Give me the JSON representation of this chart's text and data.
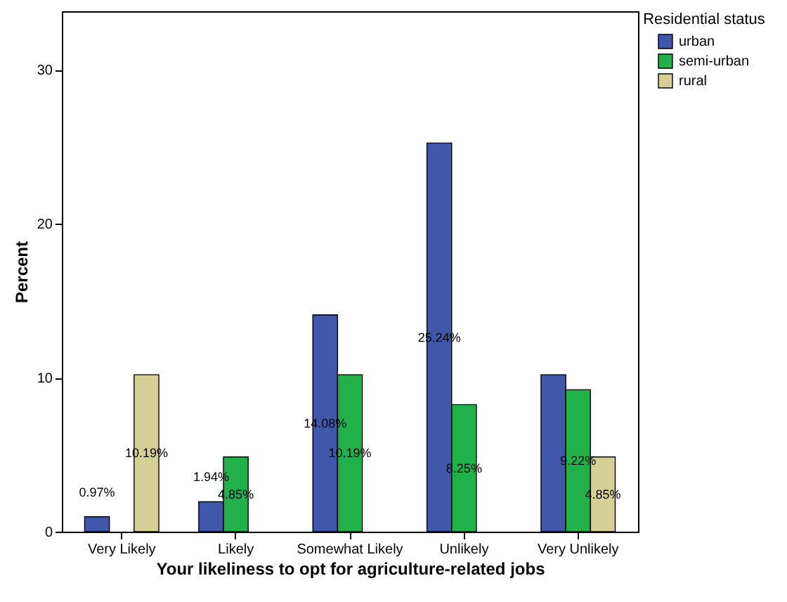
{
  "chart_data": {
    "type": "bar",
    "xlabel": "Your likeliness to opt for agriculture-related jobs",
    "ylabel": "Percent",
    "legend_title": "Residential status",
    "legend": "top right",
    "categories": [
      "Very Likely",
      "Likely",
      "Somewhat Likely",
      "Unlikely",
      "Very Unlikely"
    ],
    "ylim": [
      0,
      33.8
    ],
    "yticks": [
      0,
      10,
      20,
      30
    ],
    "grid": false,
    "series": [
      {
        "name": "urban",
        "color": "#3f58aa",
        "values": [
          0.97,
          1.94,
          14.08,
          25.24,
          10.19
        ],
        "value_labels": [
          "0.97%",
          "1.94%",
          "14.08%",
          "25.24%",
          null
        ]
      },
      {
        "name": "semi-urban",
        "color": "#22b04b",
        "values": [
          null,
          4.85,
          10.19,
          8.25,
          9.22
        ],
        "value_labels": [
          null,
          "4.85%",
          "10.19%",
          "8.25%",
          "9.22%"
        ]
      },
      {
        "name": "rural",
        "color": "#d6cf96",
        "values": [
          10.19,
          null,
          null,
          null,
          4.85
        ],
        "value_labels": [
          "10.19%",
          null,
          null,
          null,
          "4.85%"
        ]
      }
    ]
  }
}
